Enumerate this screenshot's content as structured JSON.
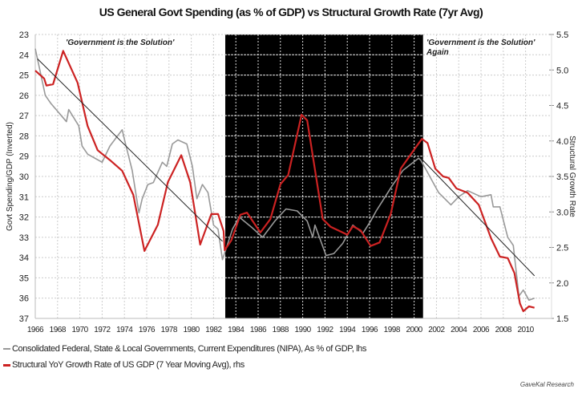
{
  "chart_data": {
    "type": "line",
    "title": "US General Govt Spending (as % of GDP) vs Structural Growth Rate (7yr Avg)",
    "ylabel_left": "Govt Spending/GDP (Inverted)",
    "ylabel_right": "Structural Growth Rate",
    "xlim": [
      1966,
      2012
    ],
    "ylim_left": [
      23,
      37
    ],
    "left_inverted": true,
    "ylim_right": [
      1.5,
      5.5
    ],
    "x_ticks": [
      "1966",
      "1968",
      "1970",
      "1972",
      "1974",
      "1976",
      "1978",
      "1980",
      "1982",
      "1984",
      "1986",
      "1988",
      "1990",
      "1992",
      "1994",
      "1996",
      "1998",
      "2000",
      "2002",
      "2004",
      "2006",
      "2008",
      "2010"
    ],
    "left_ticks": [
      "23",
      "24",
      "25",
      "26",
      "27",
      "28",
      "29",
      "30",
      "31",
      "32",
      "33",
      "34",
      "35",
      "36",
      "37"
    ],
    "right_ticks": [
      "5.5",
      "5.0",
      "4.5",
      "4.0",
      "3.5",
      "3.0",
      "2.5",
      "2.0",
      "1.5"
    ],
    "grid": true,
    "shaded_region": {
      "x": [
        1983.05,
        2000.8
      ],
      "color": "#000000"
    },
    "annotations": [
      {
        "text": "'Government is the Solution'"
      },
      {
        "text": "'Government is the Solution'"
      },
      {
        "text": "Again"
      }
    ],
    "series": [
      {
        "name": "Consolidated Federal, State & Local Governments, Current Expenditures (NIPA), As % of GDP, lhs",
        "axis": "left",
        "color": "#999999",
        "x": [
          1966.0,
          1966.9,
          1967.4,
          1968.8,
          1969.0,
          1969.9,
          1970.2,
          1970.7,
          1972.0,
          1972.7,
          1973.8,
          1974.1,
          1974.7,
          1975.3,
          1975.6,
          1976.1,
          1976.6,
          1977.4,
          1977.8,
          1978.3,
          1978.8,
          1979.6,
          1980.1,
          1980.5,
          1981.0,
          1981.5,
          1982.0,
          1982.4,
          1982.8,
          1983.7,
          1984.3,
          1985.4,
          1986.4,
          1987.5,
          1988.5,
          1989.5,
          1990.4,
          1990.9,
          1991.1,
          1992.1,
          1992.8,
          1993.6,
          1994.5,
          1995.4,
          1996.1,
          1996.6,
          1998.1,
          1999.0,
          2000.4,
          2000.6,
          2001.1,
          2002.2,
          2003.3,
          2004.0,
          2004.8,
          2006.0,
          2006.9,
          2007.1,
          2007.7,
          2008.4,
          2008.9,
          2009.4,
          2009.8,
          2010.3,
          2010.8
        ],
        "y": [
          23.7,
          26.0,
          26.4,
          27.3,
          26.7,
          27.5,
          28.5,
          28.9,
          29.3,
          28.5,
          27.7,
          28.4,
          29.7,
          31.8,
          31.1,
          30.4,
          30.3,
          29.3,
          29.5,
          28.4,
          28.2,
          28.4,
          29.5,
          31.1,
          30.4,
          30.8,
          32.4,
          32.6,
          34.1,
          32.6,
          32.0,
          32.5,
          33.0,
          32.2,
          31.6,
          31.7,
          32.2,
          33.0,
          32.4,
          33.9,
          33.8,
          33.3,
          32.4,
          32.8,
          32.2,
          31.7,
          30.4,
          29.7,
          29.1,
          29.2,
          29.7,
          30.8,
          31.4,
          31.0,
          30.7,
          31.0,
          30.9,
          31.5,
          31.5,
          33.0,
          33.4,
          35.9,
          35.6,
          36.1,
          36.0
        ]
      },
      {
        "name": "Structural YoY Growth Rate of US GDP (7 Year Moving Avg), rhs",
        "axis": "right",
        "color": "#cc2222",
        "x": [
          1966.0,
          1966.8,
          1967.0,
          1967.6,
          1968.5,
          1969.8,
          1970.7,
          1971.6,
          1972.7,
          1973.8,
          1974.8,
          1975.8,
          1977.0,
          1977.9,
          1979.1,
          1979.9,
          1980.8,
          1981.8,
          1982.4,
          1982.9,
          1983.0,
          1983.6,
          1984.4,
          1985.0,
          1986.2,
          1987.1,
          1988.0,
          1988.7,
          1989.9,
          1990.4,
          1991.8,
          1992.5,
          1994.0,
          1994.5,
          1995.2,
          1996.1,
          1996.9,
          1997.9,
          1998.8,
          2000.1,
          2000.7,
          2001.2,
          2001.9,
          2002.6,
          2003.1,
          2003.8,
          2004.8,
          2005.8,
          2006.9,
          2007.7,
          2008.4,
          2009.0,
          2009.5,
          2009.8,
          2010.3,
          2010.8
        ],
        "y": [
          4.99,
          4.88,
          4.78,
          4.8,
          5.27,
          4.82,
          4.21,
          3.87,
          3.73,
          3.58,
          3.24,
          2.45,
          2.82,
          3.42,
          3.8,
          3.42,
          2.54,
          2.97,
          2.97,
          2.73,
          2.46,
          2.6,
          2.96,
          2.99,
          2.71,
          2.9,
          3.39,
          3.52,
          4.37,
          4.29,
          2.9,
          2.79,
          2.68,
          2.8,
          2.74,
          2.52,
          2.57,
          2.97,
          3.61,
          3.9,
          4.03,
          3.97,
          3.61,
          3.5,
          3.48,
          3.33,
          3.27,
          3.1,
          2.63,
          2.37,
          2.35,
          2.14,
          1.71,
          1.6,
          1.67,
          1.65
        ]
      }
    ],
    "trend_lines": [
      {
        "axis": "left",
        "color": "#222222",
        "x": [
          1966.2,
          1982.8
        ],
        "y": [
          24.2,
          33.2
        ]
      },
      {
        "axis": "left",
        "color": "#222222",
        "x": [
          2000.6,
          2010.8
        ],
        "y": [
          29.1,
          34.9
        ]
      }
    ]
  },
  "source": "GaveKal Research"
}
